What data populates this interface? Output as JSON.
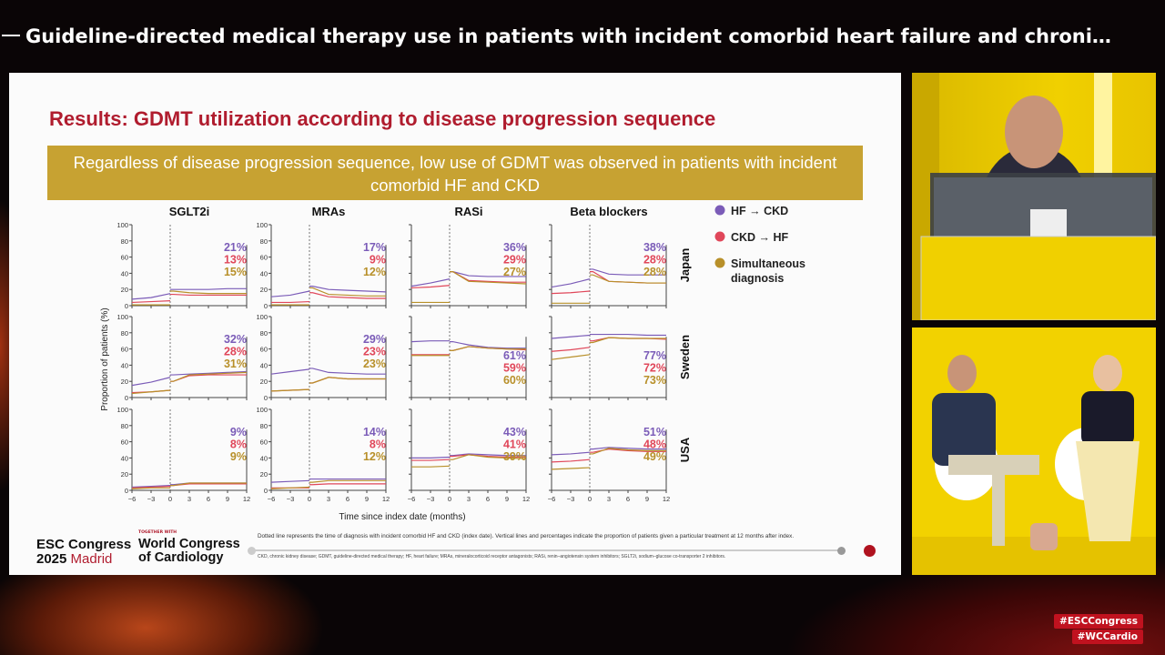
{
  "stream": {
    "title": "Guideline-directed medical therapy use in patients with incident comorbid heart failure and chroni…",
    "hashtags": [
      "#ESCCongress",
      "#WCCardio"
    ]
  },
  "slide": {
    "title": "Results: GDMT utilization according to disease progression sequence",
    "banner": "Regardless of disease progression sequence, low use of GDMT was observed in patients with incident comorbid HF and CKD",
    "footnote": "Dotted line represents the time of diagnosis with incident comorbid HF and CKD (index date). Vertical lines and percentages indicate the proportion of patients given a particular treatment at 12 months after index.",
    "abbreviations": "CKD, chronic kidney disease; GDMT, guideline-directed medical therapy; HF, heart failure; MRAs, mineralocorticoid receptor antagonists; RASi, renin–angiotensin system inhibitors; SGLT2i, sodium–glucose co-transporter 2 inhibitors.",
    "logo_esc": {
      "line1": "ESC Congress",
      "year": "2025",
      "city": "Madrid"
    },
    "logo_wcc": {
      "tag": "TOGETHER WITH",
      "line1": "World Congress",
      "line2": "of Cardiology"
    }
  },
  "chart_data": {
    "type": "line",
    "panel_grid": "3 rows x 4 columns",
    "columns": [
      "SGLT2i",
      "MRAs",
      "RASi",
      "Beta blockers"
    ],
    "rows": [
      "Japan",
      "Sweden",
      "USA"
    ],
    "xlabel": "Time since index date (months)",
    "ylabel": "Proportion of patients (%)",
    "xlim": [
      -6,
      12
    ],
    "ylim": [
      0,
      100
    ],
    "xticks": [
      "−6",
      "−3",
      "0",
      "3",
      "6",
      "9",
      "12"
    ],
    "yticks": [
      "0",
      "20",
      "40",
      "60",
      "80",
      "100"
    ],
    "index_line_x": 0,
    "grid": false,
    "legend_placement": "right",
    "x": [
      -6,
      -3,
      0,
      0.5,
      3,
      6,
      9,
      12
    ],
    "series_meta": [
      {
        "name": "HF → CKD",
        "color": "#7b5cb8"
      },
      {
        "name": "CKD → HF",
        "color": "#e0475a"
      },
      {
        "name": "Simultaneous diagnosis",
        "color": "#b8902a"
      }
    ],
    "panels": [
      {
        "row": "Japan",
        "col": "SGLT2i",
        "labels": [
          "21%",
          "13%",
          "15%"
        ],
        "series": [
          [
            8,
            10,
            15,
            20,
            20,
            20,
            21,
            21
          ],
          [
            4,
            5,
            6,
            14,
            13,
            13,
            13,
            13
          ],
          [
            1,
            1,
            1,
            18,
            16,
            15,
            15,
            15
          ]
        ]
      },
      {
        "row": "Japan",
        "col": "MRAs",
        "labels": [
          "17%",
          "9%",
          "12%"
        ],
        "series": [
          [
            11,
            13,
            18,
            24,
            20,
            19,
            18,
            17
          ],
          [
            4,
            4,
            5,
            16,
            11,
            10,
            9,
            9
          ],
          [
            1,
            1,
            1,
            22,
            14,
            13,
            12,
            12
          ]
        ]
      },
      {
        "row": "Japan",
        "col": "RASi",
        "labels": [
          "36%",
          "29%",
          "27%"
        ],
        "series": [
          [
            24,
            28,
            33,
            42,
            37,
            36,
            36,
            36
          ],
          [
            22,
            23,
            25,
            42,
            31,
            30,
            29,
            29
          ],
          [
            4,
            4,
            4,
            42,
            30,
            29,
            28,
            27
          ]
        ]
      },
      {
        "row": "Japan",
        "col": "Beta blockers",
        "labels": [
          "38%",
          "28%",
          "28%"
        ],
        "series": [
          [
            23,
            27,
            33,
            45,
            39,
            38,
            38,
            38
          ],
          [
            15,
            16,
            18,
            42,
            30,
            29,
            28,
            28
          ],
          [
            3,
            3,
            3,
            38,
            30,
            29,
            28,
            28
          ]
        ]
      },
      {
        "row": "Sweden",
        "col": "SGLT2i",
        "labels": [
          "32%",
          "28%",
          "31%"
        ],
        "series": [
          [
            15,
            19,
            25,
            28,
            29,
            30,
            31,
            32
          ],
          [
            6,
            7,
            9,
            20,
            27,
            28,
            28,
            28
          ],
          [
            5,
            7,
            9,
            20,
            28,
            29,
            30,
            31
          ]
        ]
      },
      {
        "row": "Sweden",
        "col": "MRAs",
        "labels": [
          "29%",
          "23%",
          "23%"
        ],
        "series": [
          [
            29,
            32,
            35,
            36,
            31,
            30,
            29,
            29
          ],
          [
            8,
            9,
            10,
            18,
            25,
            23,
            23,
            23
          ],
          [
            8,
            9,
            10,
            18,
            25,
            23,
            23,
            23
          ]
        ]
      },
      {
        "row": "Sweden",
        "col": "RASi",
        "labels": [
          "61%",
          "59%",
          "60%"
        ],
        "series": [
          [
            69,
            70,
            70,
            69,
            65,
            62,
            61,
            61
          ],
          [
            53,
            53,
            53,
            58,
            63,
            61,
            60,
            59
          ],
          [
            52,
            52,
            52,
            58,
            63,
            61,
            60,
            60
          ]
        ]
      },
      {
        "row": "Sweden",
        "col": "Beta blockers",
        "labels": [
          "77%",
          "72%",
          "73%"
        ],
        "series": [
          [
            73,
            75,
            77,
            78,
            78,
            78,
            77,
            77
          ],
          [
            57,
            59,
            62,
            70,
            74,
            73,
            73,
            72
          ],
          [
            47,
            50,
            53,
            68,
            74,
            73,
            73,
            73
          ]
        ]
      },
      {
        "row": "USA",
        "col": "SGLT2i",
        "labels": [
          "9%",
          "8%",
          "9%"
        ],
        "series": [
          [
            4,
            5,
            6,
            7,
            9,
            9,
            9,
            9
          ],
          [
            3,
            4,
            5,
            6,
            8,
            8,
            8,
            8
          ],
          [
            2,
            3,
            3,
            6,
            9,
            9,
            9,
            9
          ]
        ]
      },
      {
        "row": "USA",
        "col": "MRAs",
        "labels": [
          "14%",
          "8%",
          "12%"
        ],
        "series": [
          [
            10,
            11,
            12,
            14,
            14,
            14,
            14,
            14
          ],
          [
            3,
            3,
            3,
            7,
            8,
            8,
            8,
            8
          ],
          [
            2,
            3,
            4,
            10,
            12,
            12,
            12,
            12
          ]
        ]
      },
      {
        "row": "USA",
        "col": "RASi",
        "labels": [
          "43%",
          "41%",
          "39%"
        ],
        "series": [
          [
            40,
            40,
            41,
            43,
            45,
            44,
            43,
            43
          ],
          [
            37,
            37,
            38,
            42,
            44,
            42,
            41,
            41
          ],
          [
            29,
            29,
            30,
            38,
            44,
            41,
            40,
            39
          ]
        ]
      },
      {
        "row": "USA",
        "col": "Beta blockers",
        "labels": [
          "51%",
          "48%",
          "49%"
        ],
        "series": [
          [
            44,
            45,
            47,
            51,
            53,
            52,
            51,
            51
          ],
          [
            35,
            36,
            38,
            47,
            51,
            49,
            48,
            48
          ],
          [
            26,
            27,
            28,
            45,
            52,
            50,
            49,
            49
          ]
        ]
      }
    ]
  }
}
